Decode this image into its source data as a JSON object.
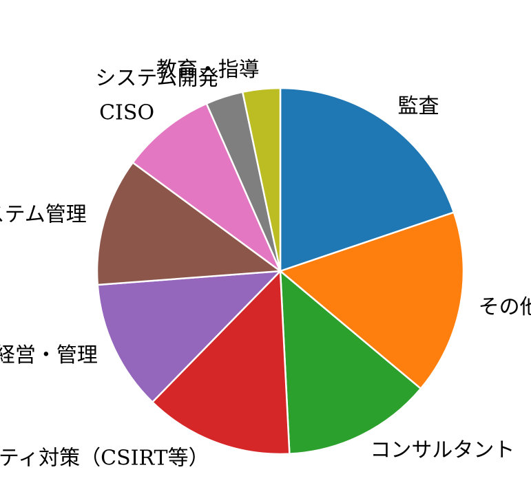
{
  "chart_data": {
    "type": "pie",
    "categories": [
      "監査",
      "その他",
      "コンサルタント",
      "セキュリティ対策（CSIRT等）",
      "経営・管理",
      "情報システム管理",
      "CISO",
      "システム開発",
      "教育・指導"
    ],
    "values": [
      19.8,
      16.3,
      13.1,
      13.1,
      11.5,
      11.3,
      8.3,
      3.3,
      3.3
    ],
    "colors": [
      "#1f77b4",
      "#ff7f0e",
      "#2ca02c",
      "#d62728",
      "#9467bd",
      "#8c564b",
      "#e377c2",
      "#7f7f7f",
      "#bcbd22"
    ],
    "startangle": 90,
    "counterclock": false
  }
}
